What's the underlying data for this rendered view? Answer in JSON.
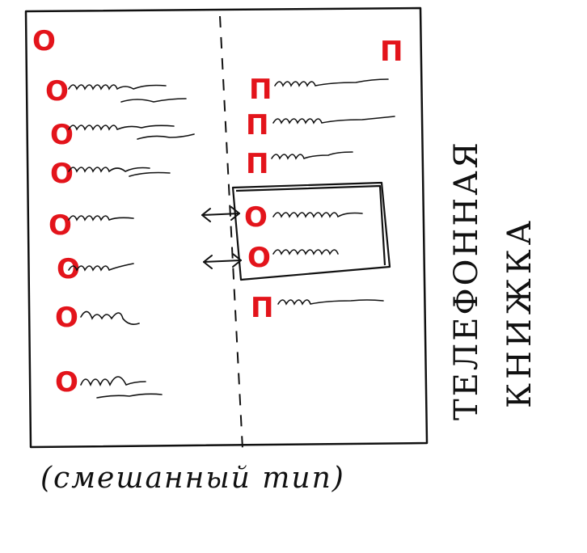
{
  "page": {
    "left_header_letter": "О",
    "right_header_letter": "П",
    "side_title_line1": "ТЕЛЕФОННАЯ",
    "side_title_line2": "КНИЖКА",
    "caption": "(смешанный тип)"
  },
  "left_column": {
    "entries": [
      {
        "letter": "О"
      },
      {
        "letter": "О"
      },
      {
        "letter": "О"
      },
      {
        "letter": "О"
      },
      {
        "letter": "О"
      },
      {
        "letter": "О"
      },
      {
        "letter": "О"
      }
    ]
  },
  "right_column": {
    "entries": [
      {
        "letter": "П"
      },
      {
        "letter": "П"
      },
      {
        "letter": "П"
      },
      {
        "letter": "О",
        "inserted": true
      },
      {
        "letter": "О",
        "inserted": true
      },
      {
        "letter": "П"
      }
    ]
  },
  "colors": {
    "ink": "#111111",
    "marker": "#e3141b"
  }
}
